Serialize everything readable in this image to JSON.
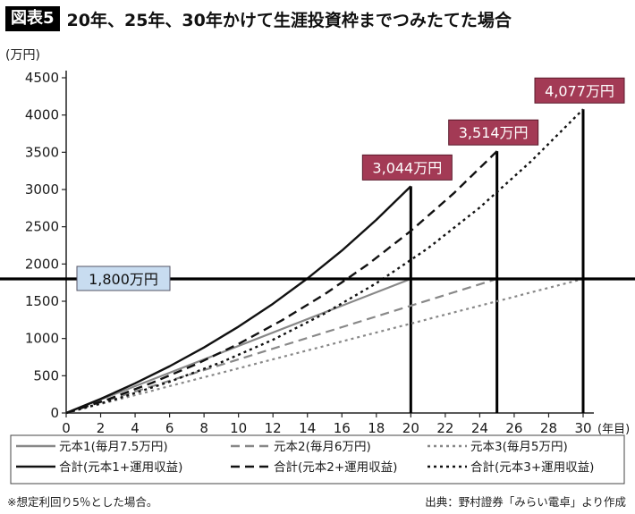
{
  "header": {
    "badge": "図表5",
    "title": "20年、25年、30年かけて生涯投資枠までつみたてた場合"
  },
  "footnotes": {
    "note": "※想定利回り5％とした場合。",
    "source": "出典：野村證券「みらい電卓」より作成"
  },
  "colors": {
    "callout": "#a33a55",
    "target_box": "#c8dcf0",
    "principal": "#888888",
    "total": "#111111"
  },
  "chart_data": {
    "type": "line",
    "title": "20年、25年、30年かけて生涯投資枠までつみたてた場合",
    "ylabel": "(万円)",
    "xlabel": "(年目)",
    "xlim": [
      0,
      30
    ],
    "ylim": [
      0,
      4500
    ],
    "xticks": [
      0,
      2,
      4,
      6,
      8,
      10,
      12,
      14,
      16,
      18,
      20,
      22,
      24,
      26,
      28,
      30
    ],
    "yticks": [
      0,
      500,
      1000,
      1500,
      2000,
      2500,
      3000,
      3500,
      4000,
      4500
    ],
    "grid": false,
    "legend_position": "bottom",
    "series": [
      {
        "name": "元本1(毎月7.5万円)",
        "style": "solid",
        "color": "#888888",
        "x": [
          0,
          20
        ],
        "y": [
          0,
          1800
        ]
      },
      {
        "name": "元本2(毎月6万円)",
        "style": "dashed",
        "color": "#888888",
        "x": [
          0,
          25
        ],
        "y": [
          0,
          1800
        ]
      },
      {
        "name": "元本3(毎月5万円)",
        "style": "dotted",
        "color": "#888888",
        "x": [
          0,
          30
        ],
        "y": [
          0,
          1800
        ]
      },
      {
        "name": "合計(元本1+運用収益)",
        "style": "solid",
        "color": "#111111",
        "x": [
          0,
          2,
          4,
          6,
          8,
          10,
          12,
          14,
          16,
          18,
          20
        ],
        "y": [
          0,
          189,
          398,
          627,
          880,
          1159,
          1466,
          1806,
          2180,
          2593,
          3044
        ]
      },
      {
        "name": "合計(元本2+運用収益)",
        "style": "dashed",
        "color": "#111111",
        "x": [
          0,
          2.5,
          5,
          7.5,
          10,
          12.5,
          15,
          17.5,
          20,
          22.5,
          25
        ],
        "y": [
          0,
          189,
          407,
          650,
          927,
          1241,
          1594,
          1993,
          2444,
          2951,
          3514
        ]
      },
      {
        "name": "合計(元本3+運用収益)",
        "style": "dotted",
        "color": "#111111",
        "x": [
          0,
          3,
          6,
          9,
          12,
          15,
          18,
          21,
          24,
          27,
          30
        ],
        "y": [
          0,
          194,
          419,
          681,
          983,
          1336,
          1742,
          2212,
          2758,
          3383,
          4077
        ]
      }
    ],
    "reference_lines": [
      {
        "type": "horizontal",
        "y": 1800,
        "label": "1,800万円"
      },
      {
        "type": "vertical",
        "x": 20,
        "y": 3044
      },
      {
        "type": "vertical",
        "x": 25,
        "y": 3514
      },
      {
        "type": "vertical",
        "x": 30,
        "y": 4077
      }
    ],
    "annotations": [
      {
        "x": 20,
        "y": 3044,
        "text": "3,044万円"
      },
      {
        "x": 25,
        "y": 3514,
        "text": "3,514万円"
      },
      {
        "x": 30,
        "y": 4077,
        "text": "4,077万円"
      }
    ]
  }
}
